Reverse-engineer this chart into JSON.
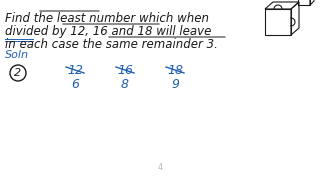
{
  "bg_color": "#ffffff",
  "text_color": "#1a1a1a",
  "blue_color": "#2060b0",
  "black_color": "#1a1a1a",
  "line1": "Find the least number which when",
  "line2": "divided by 12, 16 and 18 will leave",
  "line3": "in each case the same remainder 3.",
  "soln_label": "Soln",
  "circle_num": "2",
  "strikethrough_nums": [
    "12",
    "16",
    "18"
  ],
  "result_nums": [
    "6",
    "8",
    "9"
  ],
  "figsize": [
    3.2,
    1.8
  ],
  "dpi": 100,
  "main_fs": 8.5,
  "small_fs": 8.0
}
